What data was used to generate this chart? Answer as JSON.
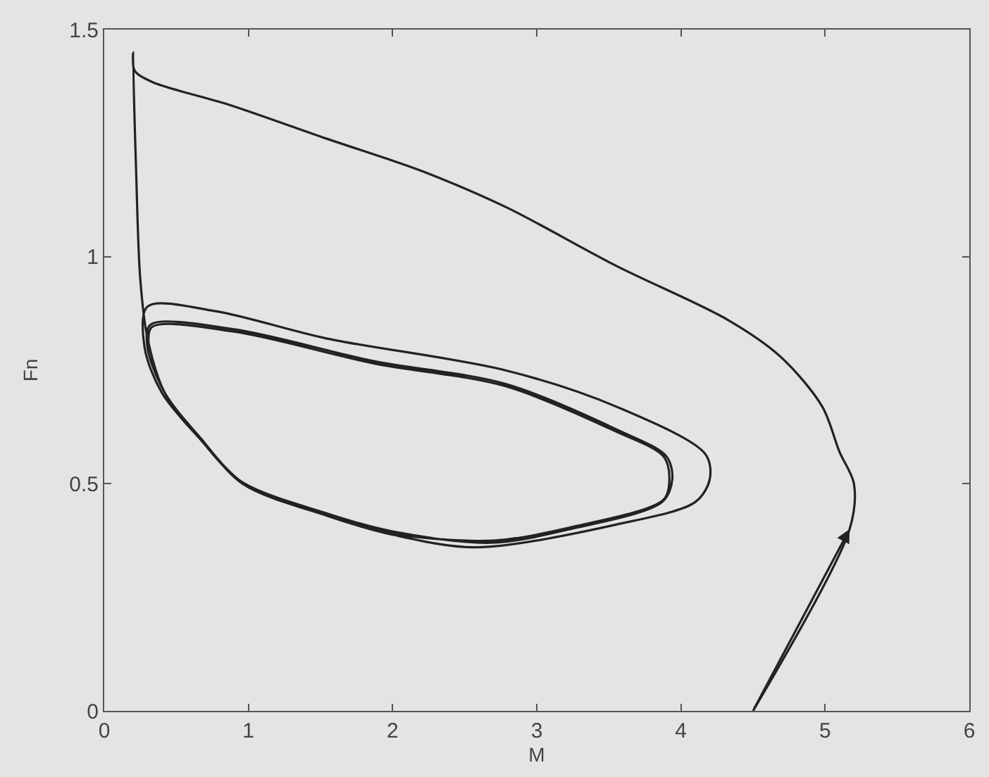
{
  "chart_data": {
    "type": "line",
    "xlabel": "M",
    "ylabel": "Fn",
    "xlim": [
      0,
      6
    ],
    "xticks": [
      0,
      1,
      2,
      3,
      4,
      5,
      6
    ],
    "ylim": [
      0,
      1.5
    ],
    "yticks": [
      0,
      0.5,
      1,
      1.5
    ],
    "grid": false,
    "marker": "none",
    "line_style": "solid",
    "series": [
      {
        "color": "#222222",
        "x": [
          4.5,
          5.17,
          5.2,
          5.1,
          4.98,
          4.69,
          4.33,
          3.55,
          2.78,
          2.19,
          1.54,
          0.86,
          0.33,
          0.21,
          0.2,
          0.22,
          0.25,
          0.3,
          0.42,
          0.67,
          0.96,
          1.54,
          1.97,
          2.58,
          3.55,
          4.1,
          4.2,
          4.17,
          3.55,
          2.78,
          1.54,
          0.77,
          0.3,
          0.28,
          0.4,
          0.66,
          0.95,
          1.54,
          2.0,
          2.68,
          3.23,
          3.87,
          3.94,
          3.9,
          3.55,
          2.78,
          1.87,
          0.9,
          0.32,
          0.3,
          0.42,
          0.68,
          0.97,
          1.55,
          2.0,
          2.7,
          3.25,
          3.88,
          3.92,
          3.88,
          3.55,
          2.78,
          1.87,
          0.9,
          0.33,
          0.31
        ],
        "values": [
          0,
          0.4,
          0.5,
          0.57,
          0.67,
          0.78,
          0.86,
          0.98,
          1.11,
          1.19,
          1.26,
          1.335,
          1.385,
          1.41,
          1.45,
          1.2,
          0.95,
          0.82,
          0.7,
          0.6,
          0.5,
          0.43,
          0.39,
          0.36,
          0.41,
          0.46,
          0.51,
          0.565,
          0.67,
          0.75,
          0.82,
          0.88,
          0.89,
          0.8,
          0.7,
          0.6,
          0.505,
          0.435,
          0.395,
          0.37,
          0.4,
          0.46,
          0.51,
          0.56,
          0.62,
          0.72,
          0.77,
          0.84,
          0.85,
          0.8,
          0.7,
          0.595,
          0.5,
          0.43,
          0.39,
          0.375,
          0.405,
          0.465,
          0.51,
          0.56,
          0.615,
          0.715,
          0.765,
          0.835,
          0.845,
          0.8
        ]
      }
    ]
  }
}
